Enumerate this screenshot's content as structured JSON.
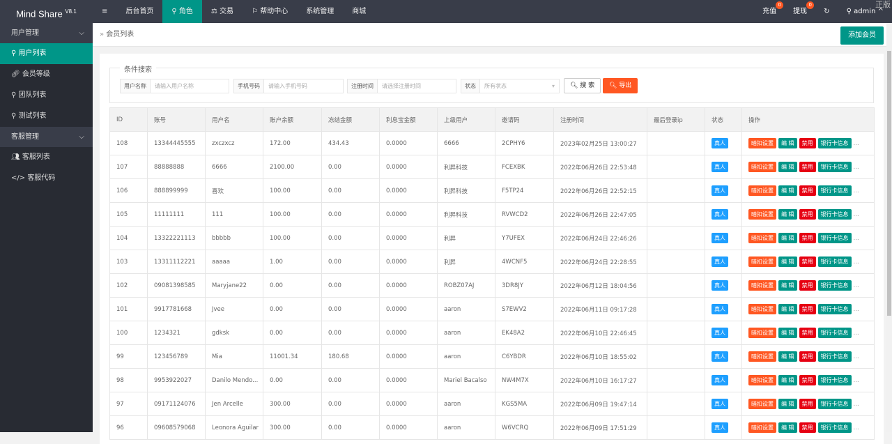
{
  "header": {
    "logo": "Mind Share",
    "version": "V8.1",
    "menu_icon": "≡",
    "nav": [
      "后台首页",
      "角色",
      "交易",
      "帮助中心",
      "系统管理",
      "商城"
    ],
    "active_nav": 1,
    "recharge": "充值",
    "recharge_count": "0",
    "withdraw": "提现",
    "withdraw_count": "0",
    "user": "admin",
    "watermark": "正版"
  },
  "sidebar": {
    "groups": [
      {
        "label": "用户管理",
        "items": [
          "用户列表",
          "会员等级",
          "团队列表",
          "测试列表"
        ]
      },
      {
        "label": "客服管理",
        "items": [
          "客服列表",
          "客服代码"
        ]
      }
    ]
  },
  "breadcrumb": "会员列表",
  "add_button": "添加会员",
  "search": {
    "legend": "条件搜索",
    "username_label": "用户名称",
    "username_placeholder": "请输入用户名称",
    "phone_label": "手机号码",
    "phone_placeholder": "请输入手机号码",
    "date_label": "注册时间",
    "date_placeholder": "请选择注册时间",
    "status_label": "状态",
    "status_value": "所有状态",
    "search_btn": "搜 索",
    "export_btn": "导出"
  },
  "colors": {
    "teal": "#009688",
    "orange": "#FF5722",
    "red": "#E60012",
    "blue": "#1E9FFF"
  },
  "table": {
    "columns": [
      "ID",
      "账号",
      "用户名",
      "账户余额",
      "冻结金额",
      "利息宝金额",
      "上级用户",
      "邀请码",
      "注册时间",
      "最后登录ip",
      "状态",
      "操作"
    ],
    "actions": [
      "暗扣设置",
      "编 辑",
      "禁用",
      "银行卡信息",
      "..."
    ],
    "rows": [
      [
        "108",
        "13344445555",
        "zxczxcz",
        "172.00",
        "434.43",
        "0.0000",
        "6666",
        "2CPHY6",
        "2023年02月25日 13:00:27",
        "",
        "真人"
      ],
      [
        "107",
        "88888888",
        "6666",
        "2100.00",
        "0.00",
        "0.0000",
        "利昇科技",
        "FCEXBK",
        "2022年06月26日 22:53:48",
        "",
        "真人"
      ],
      [
        "106",
        "888899999",
        "喜欢",
        "100.00",
        "0.00",
        "0.0000",
        "利昇科技",
        "F5TP24",
        "2022年06月26日 22:52:15",
        "",
        "真人"
      ],
      [
        "105",
        "11111111",
        "111",
        "100.00",
        "0.00",
        "0.0000",
        "利昇科技",
        "RVWCD2",
        "2022年06月26日 22:47:05",
        "",
        "真人"
      ],
      [
        "104",
        "13322221113",
        "bbbbb",
        "100.00",
        "0.00",
        "0.0000",
        "利昇",
        "Y7UFEX",
        "2022年06月24日 22:46:26",
        "",
        "真人"
      ],
      [
        "103",
        "13311112221",
        "aaaaa",
        "1.00",
        "0.00",
        "0.0000",
        "利昇",
        "4WCNF5",
        "2022年06月24日 22:28:55",
        "",
        "真人"
      ],
      [
        "102",
        "09081398585",
        "Maryjane22",
        "0.00",
        "0.00",
        "0.0000",
        "ROBZ07AJ",
        "3DR8JY",
        "2022年06月12日 18:04:56",
        "",
        "真人"
      ],
      [
        "101",
        "9917781668",
        "Jvee",
        "0.00",
        "0.00",
        "0.0000",
        "aaron",
        "S7EWV2",
        "2022年06月11日 09:17:28",
        "",
        "真人"
      ],
      [
        "100",
        "1234321",
        "gdksk",
        "0.00",
        "0.00",
        "0.0000",
        "aaron",
        "EK48A2",
        "2022年06月10日 22:46:45",
        "",
        "真人"
      ],
      [
        "99",
        "123456789",
        "Mia",
        "11001.34",
        "180.68",
        "0.0000",
        "aaron",
        "C6YBDR",
        "2022年06月10日 18:55:02",
        "",
        "真人"
      ],
      [
        "98",
        "9953922027",
        "Danilo Mendo...",
        "0.00",
        "0.00",
        "0.0000",
        "Mariel Bacalso",
        "NW4M7X",
        "2022年06月10日 16:17:27",
        "",
        "真人"
      ],
      [
        "97",
        "09171124076",
        "Jen Arcelle",
        "300.00",
        "0.00",
        "0.0000",
        "aaron",
        "KGS5MA",
        "2022年06月09日 19:47:14",
        "",
        "真人"
      ],
      [
        "96",
        "09608579068",
        "Leonora Aguilar",
        "300.00",
        "0.00",
        "0.0000",
        "aaron",
        "W6VCRQ",
        "2022年06月09日 17:51:29",
        "",
        "真人"
      ]
    ]
  }
}
